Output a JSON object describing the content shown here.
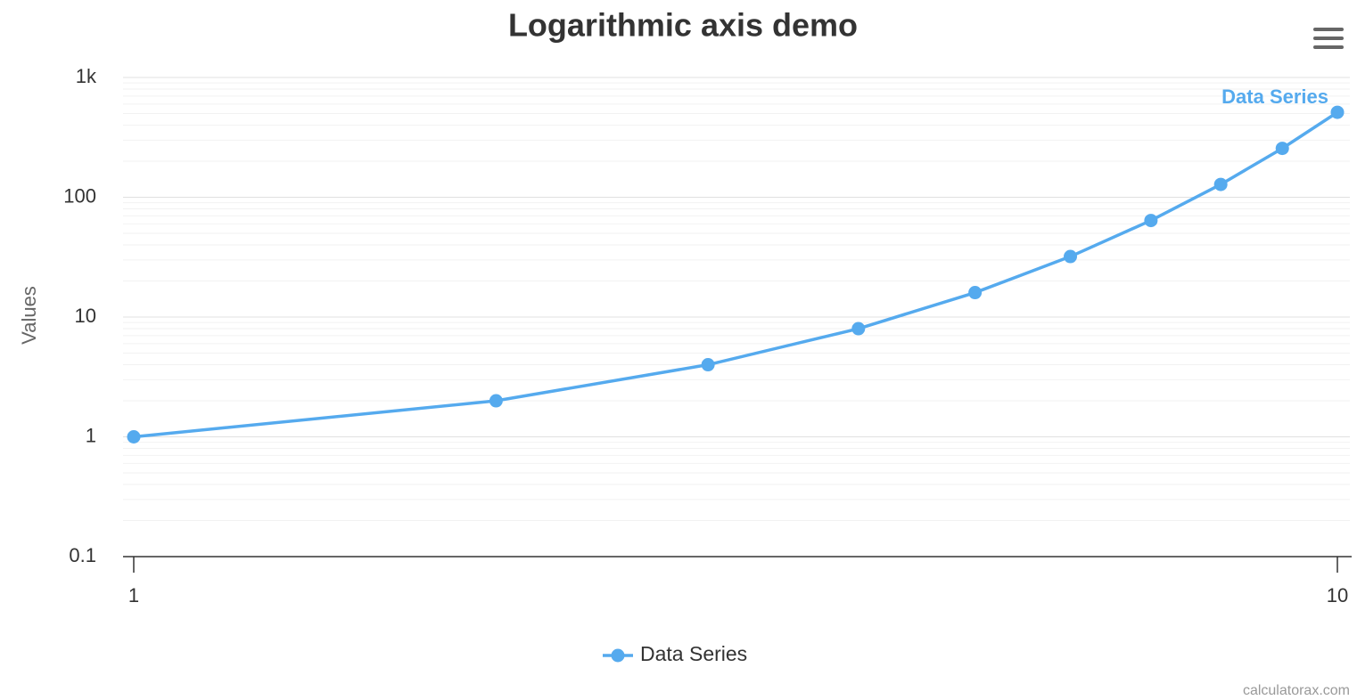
{
  "chart_data": {
    "type": "line",
    "title": "Logarithmic axis demo",
    "y_axis_label": "Values",
    "x": [
      1,
      2,
      3,
      4,
      5,
      6,
      7,
      8,
      9,
      10
    ],
    "series": [
      {
        "name": "Data Series",
        "color": "#55aaee",
        "values": [
          1,
          2,
          4,
          8,
          16,
          32,
          64,
          128,
          256,
          512
        ]
      }
    ],
    "xlim": [
      1,
      10
    ],
    "xticks": [
      1,
      10
    ],
    "x_log": true,
    "ylim": [
      0.1,
      1000
    ],
    "yticks": [
      {
        "value": 0.1,
        "label": "0.1"
      },
      1,
      10,
      100,
      {
        "value": 1000,
        "label": "1k"
      }
    ],
    "y_log": true,
    "grid": true,
    "minor_grid": true,
    "legend": "bottom",
    "credits": "calculatorax.com"
  }
}
